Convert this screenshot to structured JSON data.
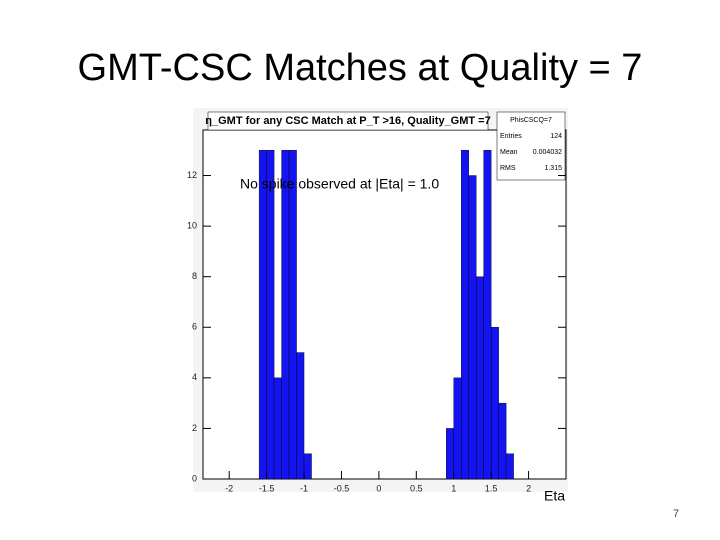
{
  "slide": {
    "title": "GMT-CSC Matches at Quality = 7",
    "page_number": "7"
  },
  "chart_data": {
    "type": "histogram",
    "title": "η_GMT for any CSC Match at P_T >16, Quality_GMT =7",
    "annotation": "No spike observed at |Eta| = 1.0",
    "x_label": "Eta",
    "stats": {
      "name": "PhisCSCQ=7",
      "entries_label": "Entries",
      "entries": 124,
      "mean_label": "Mean",
      "mean": 0.004032,
      "rms_label": "RMS",
      "rms": 1.315
    },
    "bins": [
      -1.6,
      -1.5,
      -1.4,
      -1.3,
      -1.2,
      -1.1,
      -1.0,
      -0.9,
      -0.8,
      -0.7,
      -0.6,
      -0.5,
      -0.4,
      -0.3,
      -0.2,
      -0.1,
      0,
      0.1,
      0.2,
      0.3,
      0.4,
      0.5,
      0.6,
      0.7,
      0.8,
      0.9,
      1.0,
      1.1,
      1.2,
      1.3,
      1.4,
      1.5,
      1.6,
      1.7,
      1.8
    ],
    "values": [
      13,
      13,
      4,
      13,
      13,
      5,
      1,
      0,
      0,
      0,
      0,
      0,
      0,
      0,
      0,
      0,
      0,
      0,
      0,
      0,
      0,
      0,
      0,
      0,
      0,
      2,
      4,
      13,
      12,
      8,
      13,
      6,
      3,
      1
    ],
    "color": "#1414f0",
    "xlim": [
      -2.35,
      2.5
    ],
    "xticks": [
      -2,
      -1.5,
      -1,
      -0.5,
      0,
      0.5,
      1,
      1.5,
      2
    ],
    "ylim": [
      0,
      13.8
    ],
    "yticks": [
      0,
      2,
      4,
      6,
      8,
      10,
      12
    ]
  }
}
